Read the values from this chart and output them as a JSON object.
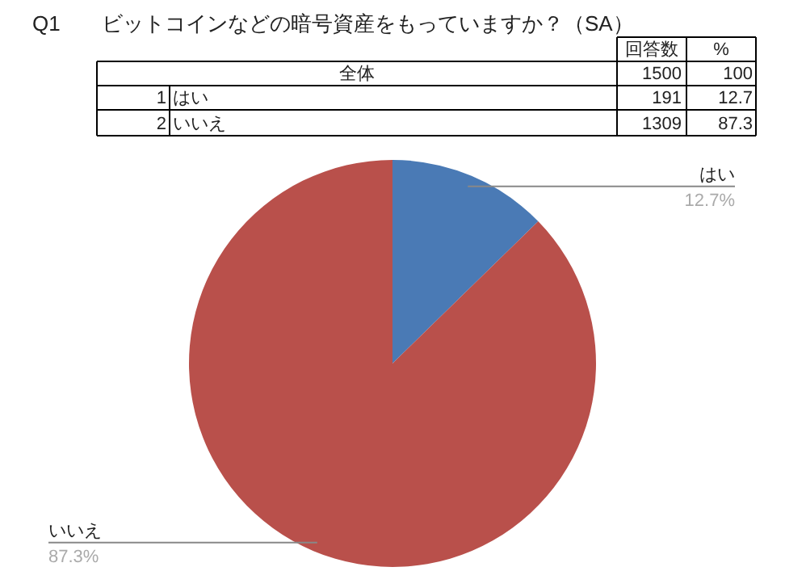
{
  "chart_data": {
    "type": "pie",
    "title": "Q1",
    "subtitle": "ビットコインなどの暗号資産をもっていますか？（SA）",
    "categories": [
      "はい",
      "いいえ"
    ],
    "values": [
      12.7,
      87.3
    ],
    "colors": [
      "#4a7ab5",
      "#b9504b"
    ],
    "value_labels": [
      "12.7%",
      "87.3%"
    ],
    "annotations": [
      "回答数",
      "%",
      "全体",
      "1500",
      "100",
      "1",
      "191",
      "12.7",
      "2",
      "1309",
      "87.3"
    ]
  }
}
